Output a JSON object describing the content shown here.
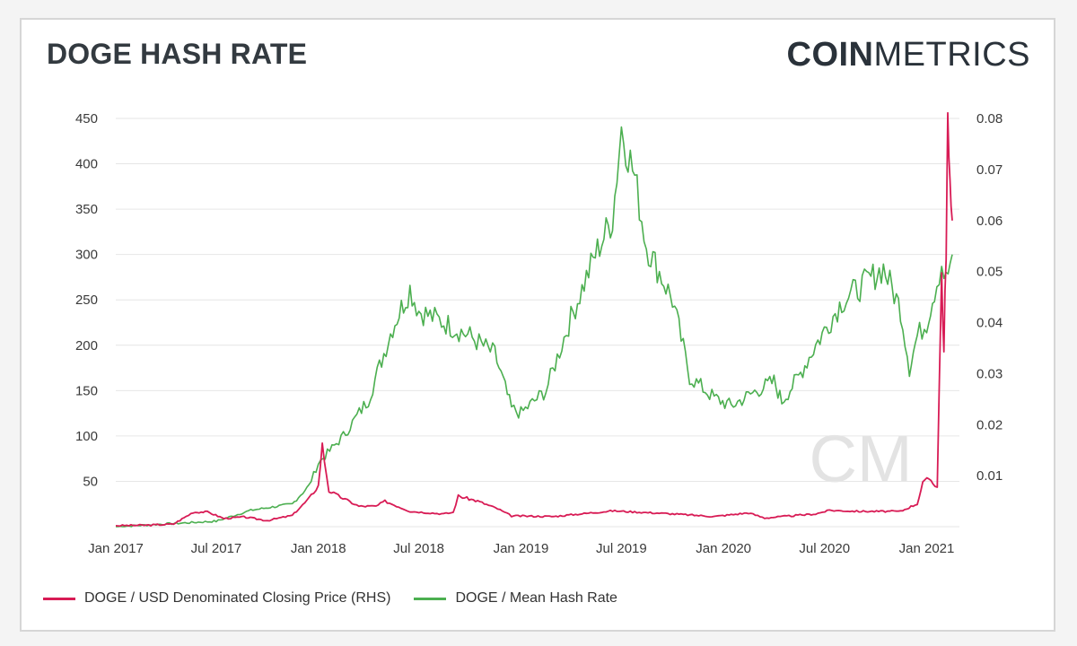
{
  "header": {
    "title": "DOGE HASH RATE",
    "brand_strong": "COIN",
    "brand_light": "METRICS"
  },
  "colors": {
    "price": "#d81b55",
    "hash": "#4caf50",
    "grid": "#e6e6e6",
    "watermark": "#e3e3e3"
  },
  "watermark_text": "CM",
  "chart_data": {
    "type": "line",
    "title": "DOGE HASH RATE",
    "x_range": [
      "2017-01-01",
      "2021-03-01"
    ],
    "x_ticks": [
      "Jan 2017",
      "Jul 2017",
      "Jan 2018",
      "Jul 2018",
      "Jan 2019",
      "Jul 2019",
      "Jan 2020",
      "Jul 2020",
      "Jan 2021"
    ],
    "y_left": {
      "range": [
        0,
        450
      ],
      "ticks": [
        "50",
        "100",
        "150",
        "200",
        "250",
        "300",
        "350",
        "400",
        "450"
      ]
    },
    "y_right": {
      "range": [
        0,
        0.08
      ],
      "ticks": [
        "0.01",
        "0.02",
        "0.03",
        "0.04",
        "0.05",
        "0.06",
        "0.07",
        "0.08"
      ]
    },
    "grid": "horizontal",
    "legend_position": "bottom-left",
    "series": [
      {
        "name": "DOGE / USD Denominated Closing Price (RHS)",
        "axis": "right",
        "points": [
          [
            "2017-01-01",
            0.0002
          ],
          [
            "2017-03-01",
            0.0003
          ],
          [
            "2017-04-15",
            0.0005
          ],
          [
            "2017-05-20",
            0.0028
          ],
          [
            "2017-06-15",
            0.0029
          ],
          [
            "2017-07-15",
            0.0016
          ],
          [
            "2017-08-20",
            0.0019
          ],
          [
            "2017-10-01",
            0.0012
          ],
          [
            "2017-11-15",
            0.0022
          ],
          [
            "2017-12-15",
            0.0055
          ],
          [
            "2018-01-01",
            0.008
          ],
          [
            "2018-01-08",
            0.016
          ],
          [
            "2018-01-20",
            0.007
          ],
          [
            "2018-02-10",
            0.0058
          ],
          [
            "2018-03-15",
            0.004
          ],
          [
            "2018-04-15",
            0.004
          ],
          [
            "2018-05-01",
            0.005
          ],
          [
            "2018-06-15",
            0.003
          ],
          [
            "2018-08-15",
            0.0025
          ],
          [
            "2018-09-01",
            0.0028
          ],
          [
            "2018-09-10",
            0.006
          ],
          [
            "2018-10-15",
            0.005
          ],
          [
            "2018-11-20",
            0.0035
          ],
          [
            "2018-12-15",
            0.0021
          ],
          [
            "2019-03-01",
            0.002
          ],
          [
            "2019-06-15",
            0.0031
          ],
          [
            "2019-09-15",
            0.0026
          ],
          [
            "2019-12-15",
            0.002
          ],
          [
            "2020-02-15",
            0.0027
          ],
          [
            "2020-03-15",
            0.0017
          ],
          [
            "2020-06-15",
            0.0025
          ],
          [
            "2020-07-10",
            0.0032
          ],
          [
            "2020-09-01",
            0.003
          ],
          [
            "2020-11-15",
            0.003
          ],
          [
            "2020-12-15",
            0.0045
          ],
          [
            "2020-12-25",
            0.0085
          ],
          [
            "2021-01-05",
            0.0095
          ],
          [
            "2021-01-20",
            0.0078
          ],
          [
            "2021-01-28",
            0.05
          ],
          [
            "2021-02-01",
            0.034
          ],
          [
            "2021-02-05",
            0.055
          ],
          [
            "2021-02-08",
            0.079
          ],
          [
            "2021-02-12",
            0.065
          ],
          [
            "2021-02-16",
            0.06
          ]
        ]
      },
      {
        "name": "DOGE / Mean Hash Rate",
        "axis": "left",
        "points": [
          [
            "2017-01-01",
            0
          ],
          [
            "2017-07-01",
            6
          ],
          [
            "2017-09-01",
            18
          ],
          [
            "2017-11-15",
            25
          ],
          [
            "2017-12-15",
            45
          ],
          [
            "2018-01-01",
            70
          ],
          [
            "2018-02-15",
            100
          ],
          [
            "2018-04-01",
            140
          ],
          [
            "2018-05-15",
            220
          ],
          [
            "2018-06-15",
            262
          ],
          [
            "2018-07-01",
            238
          ],
          [
            "2018-08-15",
            225
          ],
          [
            "2018-10-01",
            210
          ],
          [
            "2018-11-15",
            190
          ],
          [
            "2018-12-15",
            130
          ],
          [
            "2019-01-01",
            125
          ],
          [
            "2019-02-15",
            150
          ],
          [
            "2019-04-01",
            230
          ],
          [
            "2019-05-15",
            300
          ],
          [
            "2019-06-15",
            340
          ],
          [
            "2019-07-01",
            440
          ],
          [
            "2019-07-25",
            385
          ],
          [
            "2019-08-15",
            310
          ],
          [
            "2019-10-01",
            250
          ],
          [
            "2019-11-01",
            165
          ],
          [
            "2019-12-15",
            142
          ],
          [
            "2020-01-15",
            133
          ],
          [
            "2020-03-01",
            150
          ],
          [
            "2020-04-01",
            160
          ],
          [
            "2020-04-15",
            138
          ],
          [
            "2020-05-15",
            165
          ],
          [
            "2020-06-15",
            200
          ],
          [
            "2020-08-01",
            248
          ],
          [
            "2020-09-15",
            270
          ],
          [
            "2020-10-15",
            285
          ],
          [
            "2020-11-15",
            240
          ],
          [
            "2020-12-01",
            175
          ],
          [
            "2020-12-15",
            210
          ],
          [
            "2021-01-01",
            225
          ],
          [
            "2021-01-15",
            260
          ],
          [
            "2021-01-28",
            290
          ],
          [
            "2021-02-05",
            270
          ],
          [
            "2021-02-16",
            300
          ]
        ]
      }
    ]
  }
}
